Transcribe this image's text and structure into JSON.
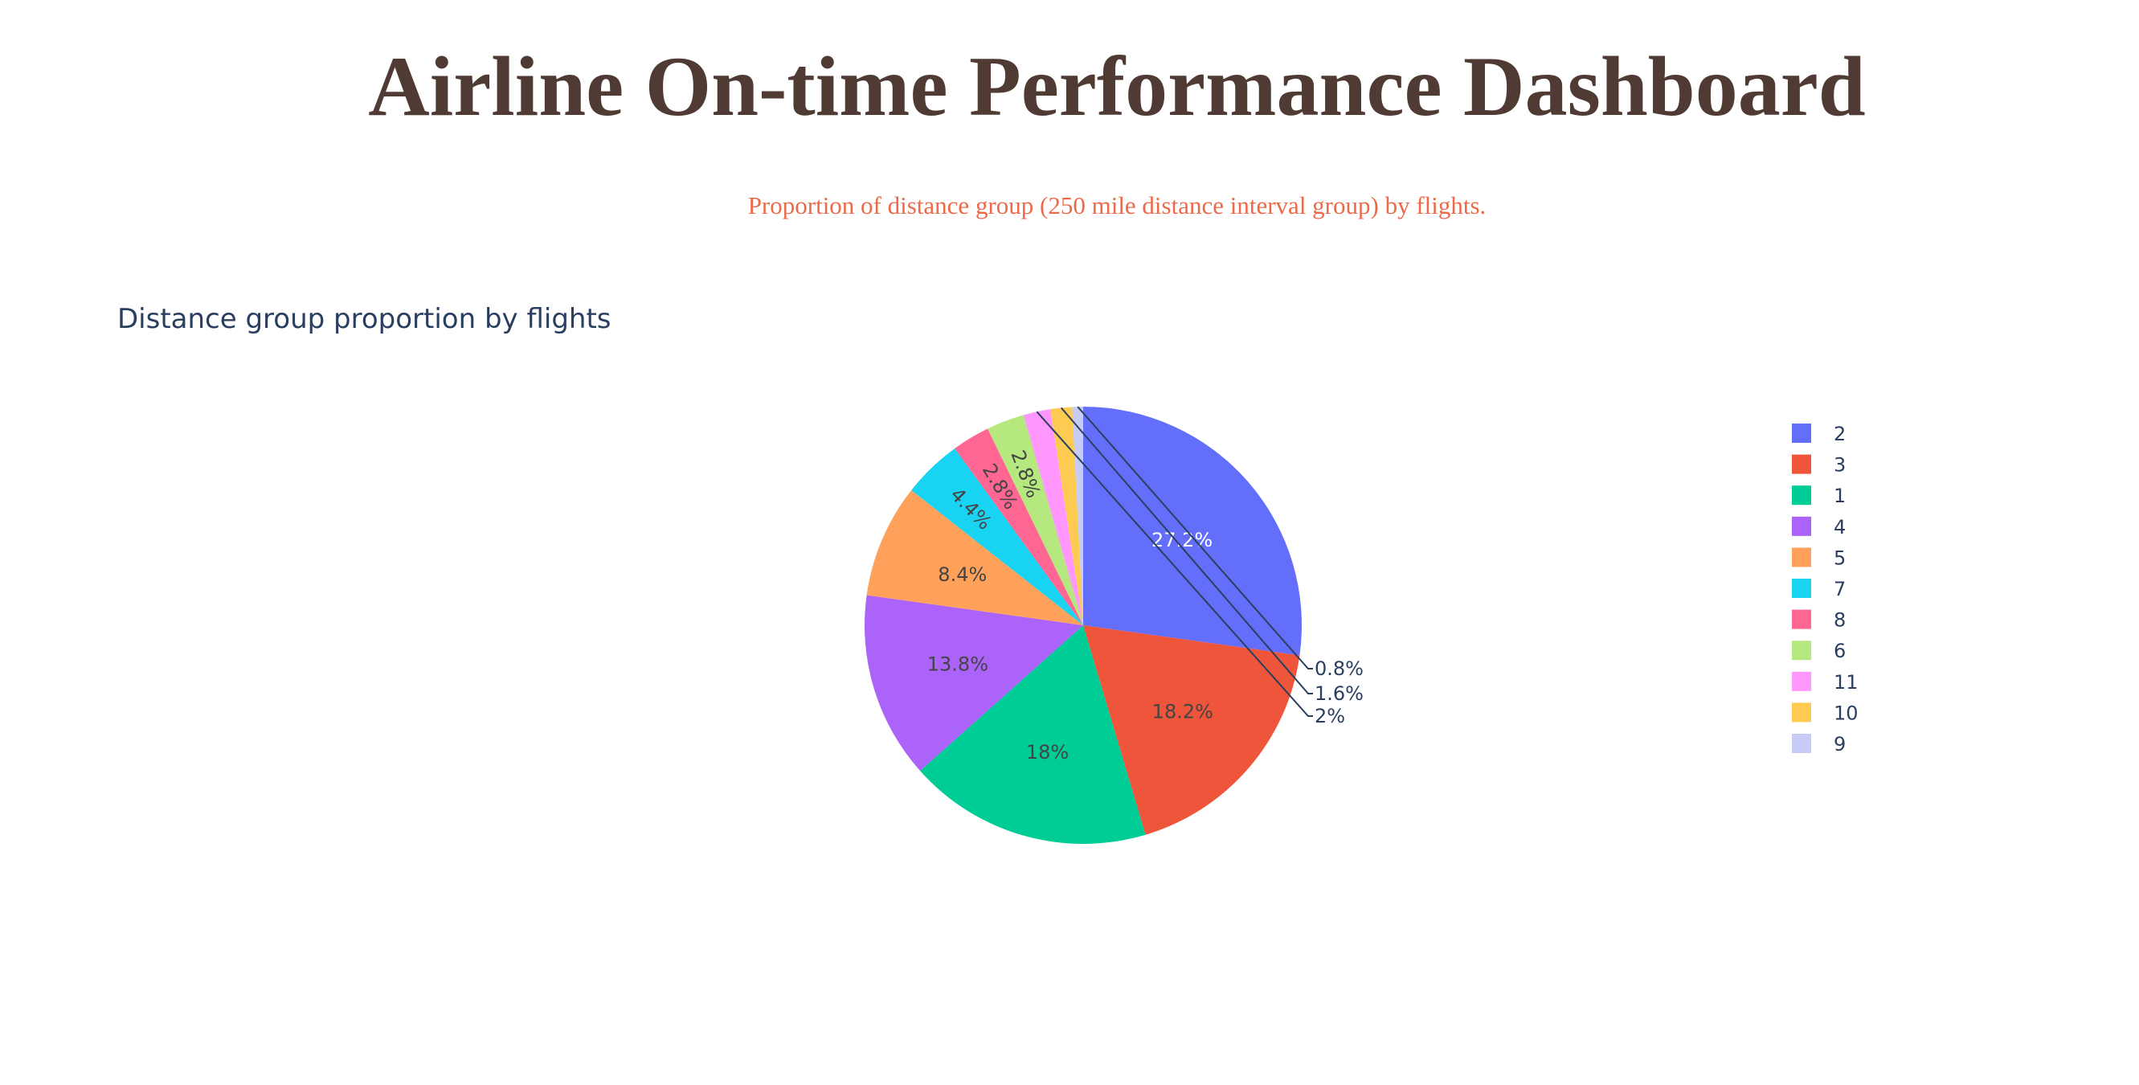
{
  "header": {
    "title": "Airline On-time Performance Dashboard",
    "subtitle": "Proportion of distance group (250 mile distance interval group) by flights."
  },
  "chart_data": {
    "type": "pie",
    "title": "Distance group proportion by flights",
    "categories": [
      "2",
      "3",
      "1",
      "4",
      "5",
      "7",
      "8",
      "6",
      "11",
      "10",
      "9"
    ],
    "values": [
      27.2,
      18.2,
      18.0,
      13.8,
      8.4,
      4.4,
      2.8,
      2.8,
      2.0,
      1.6,
      0.8
    ],
    "labels": [
      "27.2%",
      "18.2%",
      "18%",
      "13.8%",
      "8.4%",
      "4.4%",
      "2.8%",
      "2.8%",
      "2%",
      "1.6%",
      "0.8%"
    ],
    "colors": [
      "#636efa",
      "#ef553b",
      "#00cc96",
      "#ab63fa",
      "#ffa15a",
      "#19d3f3",
      "#ff6692",
      "#b6e880",
      "#ff97ff",
      "#fecb52",
      "#c6ccf5"
    ],
    "label_colors": [
      "#ffffff",
      "#444444",
      "#444444",
      "#444444",
      "#444444",
      "#444444",
      "#444444",
      "#444444",
      "#2a3f5f",
      "#2a3f5f",
      "#2a3f5f"
    ],
    "direction": "clockwise",
    "legend_position": "right",
    "legend": [
      "2",
      "3",
      "1",
      "4",
      "5",
      "7",
      "8",
      "6",
      "11",
      "10",
      "9"
    ]
  }
}
